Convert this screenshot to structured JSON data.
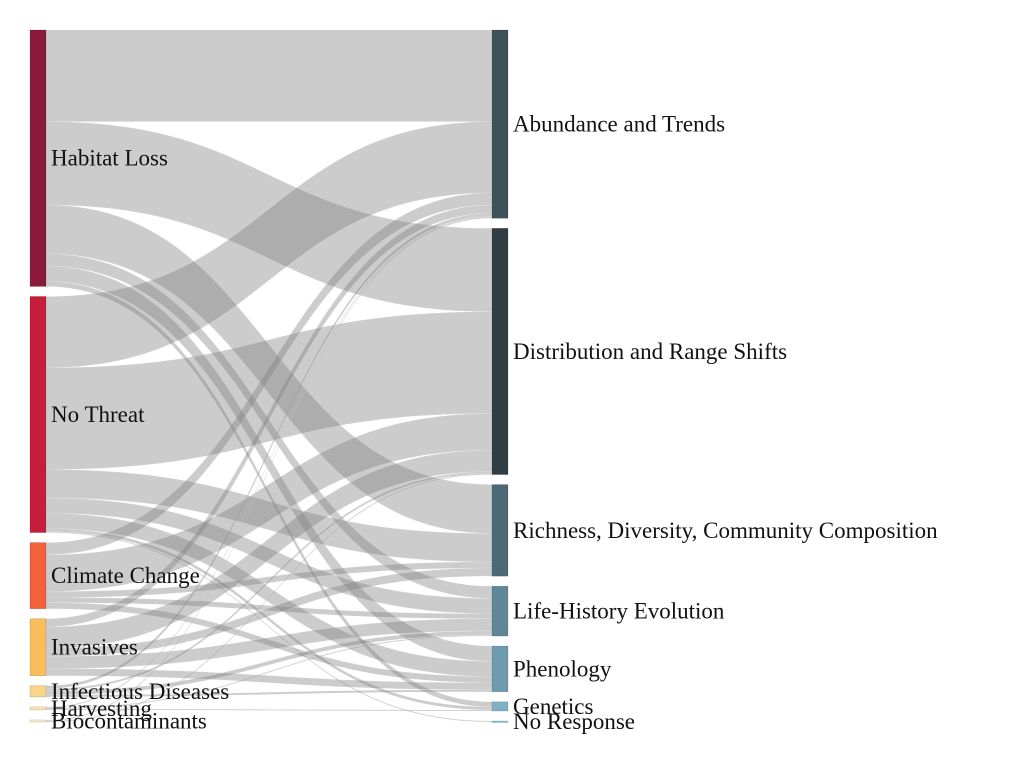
{
  "chart_data": {
    "type": "sankey",
    "sources": [
      {
        "id": "habitat_loss",
        "name": "Habitat Loss",
        "color": "#8b1a3c"
      },
      {
        "id": "no_threat",
        "name": "No Threat",
        "color": "#c41e3a"
      },
      {
        "id": "climate_change",
        "name": "Climate Change",
        "color": "#f4613d"
      },
      {
        "id": "invasives",
        "name": "Invasives",
        "color": "#f9bd5c"
      },
      {
        "id": "infectious_diseases",
        "name": "Infectious Diseases",
        "color": "#f9d58a"
      },
      {
        "id": "harvesting",
        "name": "Harvesting",
        "color": "#fbe4ad"
      },
      {
        "id": "biocontaminants",
        "name": "Biocontaminants",
        "color": "#fdf0c8"
      }
    ],
    "targets": [
      {
        "id": "abundance",
        "name": "Abundance and Trends",
        "color": "#3e525c"
      },
      {
        "id": "distribution",
        "name": "Distribution and Range Shifts",
        "color": "#2f3d45"
      },
      {
        "id": "richness",
        "name": "Richness, Diversity, Community Composition",
        "color": "#4d6976"
      },
      {
        "id": "life_history",
        "name": "Life-History Evolution",
        "color": "#5f8798"
      },
      {
        "id": "phenology",
        "name": "Phenology",
        "color": "#6e9bb0"
      },
      {
        "id": "genetics",
        "name": "Genetics",
        "color": "#7fb0c6"
      },
      {
        "id": "no_response",
        "name": "No Response",
        "color": "#8fc0d4"
      }
    ],
    "links": [
      {
        "source": "habitat_loss",
        "target": "abundance",
        "value": 90
      },
      {
        "source": "habitat_loss",
        "target": "distribution",
        "value": 82
      },
      {
        "source": "habitat_loss",
        "target": "richness",
        "value": 48
      },
      {
        "source": "habitat_loss",
        "target": "life_history",
        "value": 12
      },
      {
        "source": "habitat_loss",
        "target": "phenology",
        "value": 15
      },
      {
        "source": "habitat_loss",
        "target": "genetics",
        "value": 5
      },
      {
        "source": "no_threat",
        "target": "abundance",
        "value": 70
      },
      {
        "source": "no_threat",
        "target": "distribution",
        "value": 100
      },
      {
        "source": "no_threat",
        "target": "richness",
        "value": 28
      },
      {
        "source": "no_threat",
        "target": "life_history",
        "value": 15
      },
      {
        "source": "no_threat",
        "target": "phenology",
        "value": 15
      },
      {
        "source": "no_threat",
        "target": "genetics",
        "value": 3
      },
      {
        "source": "no_threat",
        "target": "no_response",
        "value": 1
      },
      {
        "source": "climate_change",
        "target": "abundance",
        "value": 12
      },
      {
        "source": "climate_change",
        "target": "distribution",
        "value": 36
      },
      {
        "source": "climate_change",
        "target": "richness",
        "value": 6
      },
      {
        "source": "climate_change",
        "target": "life_history",
        "value": 5
      },
      {
        "source": "climate_change",
        "target": "phenology",
        "value": 6
      },
      {
        "source": "invasives",
        "target": "abundance",
        "value": 8
      },
      {
        "source": "invasives",
        "target": "distribution",
        "value": 21
      },
      {
        "source": "invasives",
        "target": "richness",
        "value": 8
      },
      {
        "source": "invasives",
        "target": "life_history",
        "value": 12
      },
      {
        "source": "invasives",
        "target": "phenology",
        "value": 7
      },
      {
        "source": "infectious_diseases",
        "target": "abundance",
        "value": 3
      },
      {
        "source": "infectious_diseases",
        "target": "distribution",
        "value": 2
      },
      {
        "source": "infectious_diseases",
        "target": "life_history",
        "value": 4
      },
      {
        "source": "infectious_diseases",
        "target": "phenology",
        "value": 2
      },
      {
        "source": "harvesting",
        "target": "abundance",
        "value": 1
      },
      {
        "source": "harvesting",
        "target": "life_history",
        "value": 1
      },
      {
        "source": "harvesting",
        "target": "genetics",
        "value": 1
      },
      {
        "source": "biocontaminants",
        "target": "abundance",
        "value": 1
      },
      {
        "source": "biocontaminants",
        "target": "distribution",
        "value": 1
      }
    ]
  }
}
